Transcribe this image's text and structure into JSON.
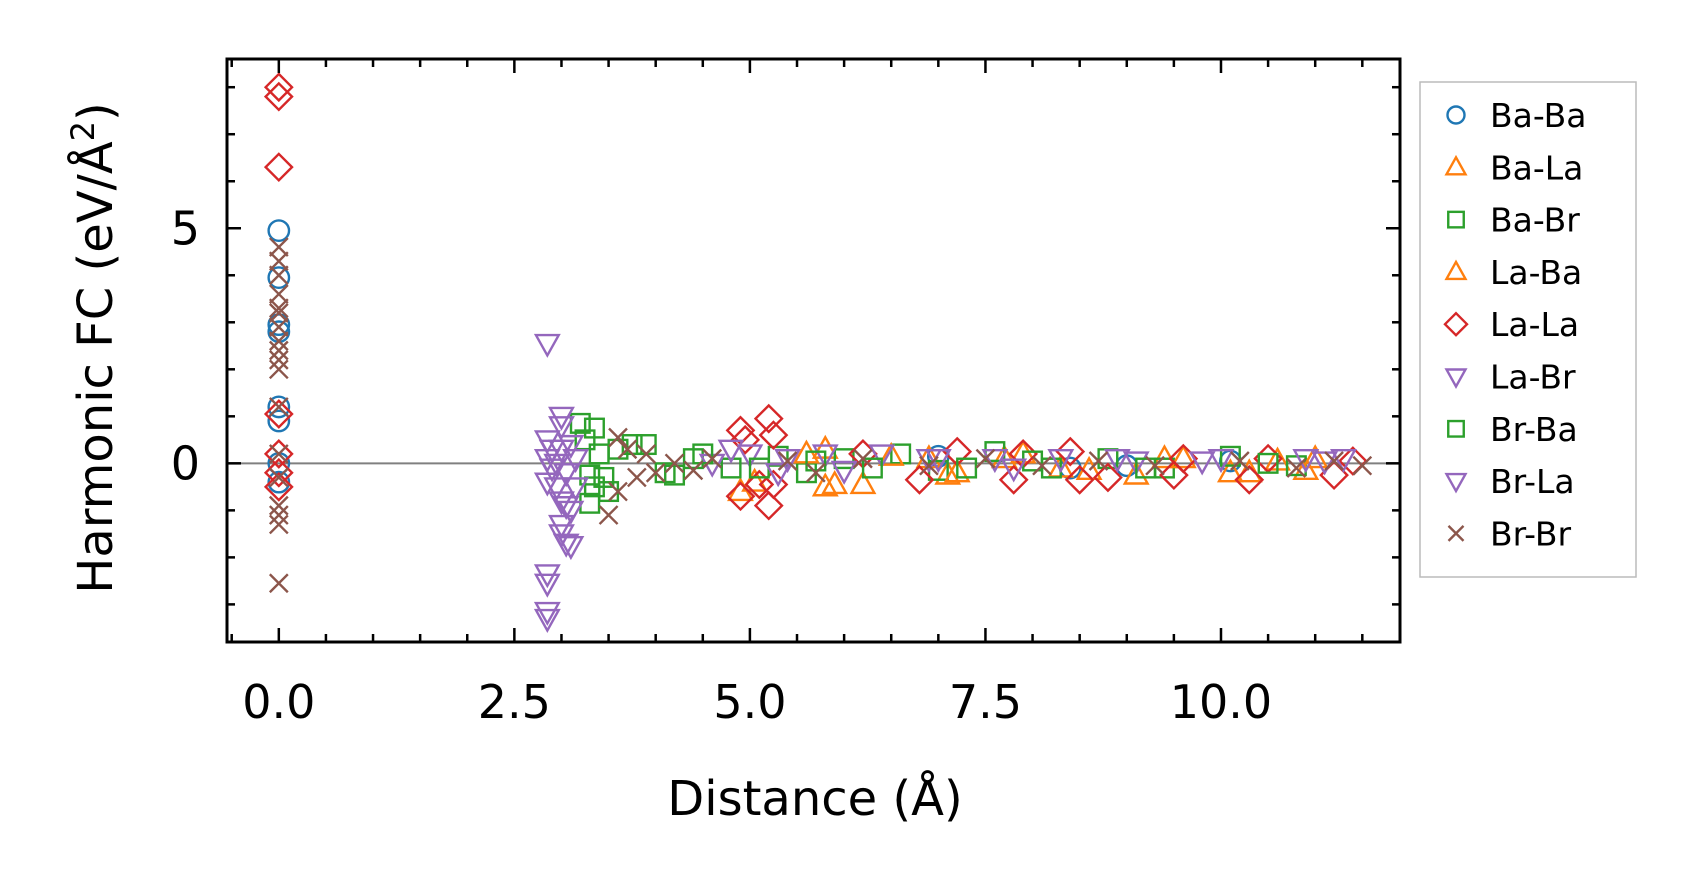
{
  "chart_data": {
    "type": "scatter",
    "xlabel": "Distance (Å)",
    "ylabel_main": "Harmonic FC (eV/Å",
    "ylabel_sup": "2",
    "ylabel_close": ")",
    "xlim": [
      -0.55,
      11.9
    ],
    "ylim": [
      -3.8,
      8.6
    ],
    "x_ticks": [
      {
        "value": 0.0,
        "label": "0.0"
      },
      {
        "value": 2.5,
        "label": "2.5"
      },
      {
        "value": 5.0,
        "label": "5.0"
      },
      {
        "value": 7.5,
        "label": "7.5"
      },
      {
        "value": 10.0,
        "label": "10.0"
      }
    ],
    "y_ticks": [
      {
        "value": 0,
        "label": "0"
      },
      {
        "value": 5,
        "label": "5"
      }
    ],
    "x_minor_step": 0.5,
    "y_minor_step": 1,
    "zero_line": true,
    "legend_position": "outside-right",
    "series": [
      {
        "name": "Ba-Ba",
        "marker": "circle",
        "color": "#1f77b4",
        "points": [
          [
            0,
            4.95
          ],
          [
            0,
            3.95
          ],
          [
            0,
            2.95
          ],
          [
            0,
            2.8
          ],
          [
            0,
            1.2
          ],
          [
            0,
            0.9
          ],
          [
            0,
            0.0
          ],
          [
            0,
            -0.4
          ],
          [
            7.0,
            0.15
          ],
          [
            8.4,
            -0.1
          ],
          [
            9.0,
            -0.05
          ],
          [
            10.1,
            0.05
          ]
        ]
      },
      {
        "name": "Ba-La",
        "marker": "triangle-up",
        "color": "#ff7f0e",
        "points": [
          [
            4.9,
            -0.6
          ],
          [
            5.05,
            -0.4
          ],
          [
            5.8,
            0.3
          ],
          [
            5.8,
            -0.5
          ],
          [
            6.2,
            -0.45
          ],
          [
            6.9,
            0.1
          ],
          [
            7.1,
            -0.25
          ],
          [
            7.7,
            0.1
          ],
          [
            8.3,
            -0.1
          ],
          [
            9.1,
            -0.25
          ],
          [
            9.4,
            0.1
          ],
          [
            10.1,
            -0.2
          ],
          [
            10.6,
            0.05
          ],
          [
            10.9,
            -0.15
          ]
        ]
      },
      {
        "name": "Ba-Br",
        "marker": "square",
        "color": "#2ca02c",
        "points": [
          [
            3.2,
            0.85
          ],
          [
            3.25,
            0.5
          ],
          [
            3.3,
            -0.25
          ],
          [
            3.3,
            -0.85
          ],
          [
            3.4,
            0.2
          ],
          [
            3.5,
            -0.6
          ],
          [
            3.6,
            0.3
          ],
          [
            3.9,
            0.4
          ],
          [
            4.1,
            -0.2
          ],
          [
            4.4,
            0.1
          ],
          [
            4.8,
            -0.1
          ],
          [
            5.3,
            0.15
          ],
          [
            5.6,
            -0.2
          ],
          [
            6.0,
            0.1
          ],
          [
            6.6,
            0.2
          ],
          [
            7.0,
            -0.15
          ],
          [
            7.6,
            0.25
          ],
          [
            8.2,
            -0.1
          ],
          [
            8.8,
            0.1
          ],
          [
            9.4,
            -0.1
          ],
          [
            10.1,
            0.15
          ],
          [
            10.8,
            -0.05
          ]
        ]
      },
      {
        "name": "La-Ba",
        "marker": "triangle-up",
        "color": "#ff7f0e",
        "points": [
          [
            5.6,
            0.2
          ],
          [
            5.9,
            -0.45
          ],
          [
            6.5,
            0.15
          ],
          [
            7.2,
            -0.2
          ],
          [
            7.9,
            0.2
          ],
          [
            8.6,
            -0.15
          ],
          [
            9.6,
            0.1
          ],
          [
            10.3,
            -0.2
          ],
          [
            11.0,
            0.1
          ]
        ]
      },
      {
        "name": "La-La",
        "marker": "diamond",
        "color": "#d62728",
        "points": [
          [
            0,
            8.0
          ],
          [
            0,
            7.8
          ],
          [
            0,
            6.3
          ],
          [
            0,
            1.05
          ],
          [
            0,
            0.2
          ],
          [
            0,
            -0.2
          ],
          [
            0,
            -0.5
          ],
          [
            4.9,
            0.7
          ],
          [
            4.95,
            0.5
          ],
          [
            4.9,
            -0.7
          ],
          [
            5.1,
            -0.45
          ],
          [
            5.2,
            0.95
          ],
          [
            5.25,
            0.6
          ],
          [
            5.2,
            -0.9
          ],
          [
            5.25,
            -0.45
          ],
          [
            6.2,
            0.2
          ],
          [
            6.8,
            -0.35
          ],
          [
            7.2,
            0.25
          ],
          [
            7.8,
            -0.35
          ],
          [
            7.9,
            0.2
          ],
          [
            8.4,
            0.25
          ],
          [
            8.5,
            -0.35
          ],
          [
            8.8,
            -0.3
          ],
          [
            9.5,
            -0.25
          ],
          [
            9.6,
            0.1
          ],
          [
            10.3,
            -0.35
          ],
          [
            10.5,
            0.1
          ],
          [
            11.2,
            -0.25
          ],
          [
            11.4,
            0.05
          ]
        ]
      },
      {
        "name": "La-Br",
        "marker": "triangle-down",
        "color": "#9467bd",
        "points": [
          [
            2.85,
            2.55
          ],
          [
            2.85,
            0.5
          ],
          [
            2.85,
            0.1
          ],
          [
            2.85,
            -0.4
          ],
          [
            2.9,
            0.3
          ],
          [
            2.9,
            -0.1
          ],
          [
            2.95,
            -0.5
          ],
          [
            3.0,
            -0.8
          ],
          [
            3.05,
            -0.2
          ],
          [
            3.1,
            0.4
          ],
          [
            3.1,
            -1.0
          ],
          [
            3.15,
            0.1
          ],
          [
            4.6,
            0.0
          ],
          [
            5.0,
            0.2
          ],
          [
            5.4,
            0.1
          ],
          [
            5.8,
            0.2
          ],
          [
            6.4,
            0.2
          ],
          [
            6.9,
            0.1
          ],
          [
            7.6,
            0.1
          ],
          [
            8.3,
            0.1
          ],
          [
            9.1,
            0.05
          ],
          [
            10.0,
            0.1
          ],
          [
            10.9,
            0.1
          ],
          [
            11.3,
            0.1
          ]
        ]
      },
      {
        "name": "Br-Ba",
        "marker": "square",
        "color": "#2ca02c",
        "points": [
          [
            3.35,
            0.75
          ],
          [
            3.35,
            -0.5
          ],
          [
            3.45,
            -0.3
          ],
          [
            3.75,
            0.4
          ],
          [
            4.2,
            -0.25
          ],
          [
            4.5,
            0.2
          ],
          [
            5.1,
            -0.1
          ],
          [
            5.7,
            0.05
          ],
          [
            6.3,
            -0.1
          ],
          [
            7.3,
            -0.1
          ],
          [
            8.0,
            0.05
          ],
          [
            9.2,
            -0.1
          ],
          [
            10.5,
            0.0
          ]
        ]
      },
      {
        "name": "Br-La",
        "marker": "triangle-down",
        "color": "#9467bd",
        "points": [
          [
            2.85,
            -2.35
          ],
          [
            2.85,
            -2.55
          ],
          [
            2.85,
            -3.15
          ],
          [
            2.85,
            -3.3
          ],
          [
            3.0,
            -1.3
          ],
          [
            3.0,
            -1.5
          ],
          [
            3.05,
            -1.7
          ],
          [
            3.1,
            -1.75
          ],
          [
            3.0,
            1.0
          ],
          [
            3.0,
            0.8
          ],
          [
            3.05,
            -0.9
          ],
          [
            3.0,
            0.3
          ],
          [
            2.95,
            0.0
          ],
          [
            3.15,
            -0.5
          ],
          [
            4.8,
            0.3
          ],
          [
            5.3,
            -0.2
          ],
          [
            6.0,
            -0.15
          ],
          [
            7.0,
            0.1
          ],
          [
            7.8,
            -0.1
          ],
          [
            8.9,
            0.1
          ],
          [
            9.8,
            0.05
          ],
          [
            11.1,
            0.05
          ]
        ]
      },
      {
        "name": "Br-Br",
        "marker": "x",
        "color": "#8c564b",
        "points": [
          [
            0,
            4.6
          ],
          [
            0,
            4.3
          ],
          [
            0,
            4.0
          ],
          [
            0,
            3.6
          ],
          [
            0,
            3.3
          ],
          [
            0,
            3.2
          ],
          [
            0,
            2.9
          ],
          [
            0,
            2.6
          ],
          [
            0,
            2.4
          ],
          [
            0,
            2.2
          ],
          [
            0,
            2.0
          ],
          [
            0,
            1.2
          ],
          [
            0,
            0.2
          ],
          [
            0,
            -0.3
          ],
          [
            0,
            -0.9
          ],
          [
            0,
            -1.1
          ],
          [
            0,
            -1.3
          ],
          [
            0,
            -2.55
          ],
          [
            3.5,
            -1.1
          ],
          [
            3.6,
            -0.6
          ],
          [
            3.6,
            0.55
          ],
          [
            3.7,
            0.3
          ],
          [
            3.8,
            -0.3
          ],
          [
            3.9,
            0.2
          ],
          [
            4.0,
            -0.2
          ],
          [
            4.2,
            0.0
          ],
          [
            4.4,
            -0.15
          ],
          [
            4.6,
            0.1
          ],
          [
            5.4,
            0.05
          ],
          [
            5.7,
            -0.2
          ],
          [
            6.2,
            0.1
          ],
          [
            6.9,
            -0.05
          ],
          [
            7.5,
            0.1
          ],
          [
            8.1,
            -0.05
          ],
          [
            8.7,
            0.05
          ],
          [
            9.3,
            -0.05
          ],
          [
            10.2,
            0.05
          ],
          [
            10.8,
            -0.1
          ],
          [
            11.2,
            0.05
          ],
          [
            11.5,
            -0.05
          ]
        ]
      }
    ]
  }
}
